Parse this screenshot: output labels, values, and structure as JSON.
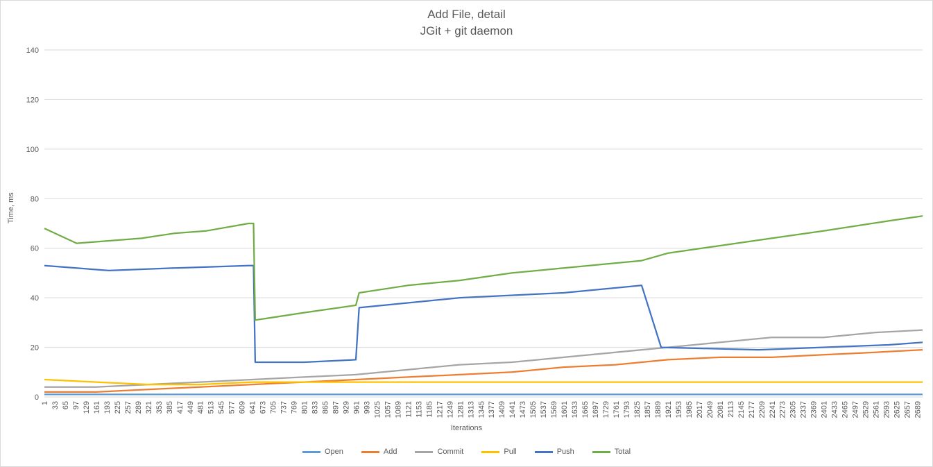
{
  "chart_data": {
    "type": "line",
    "title": "Add File, detail",
    "subtitle": "JGit + git daemon",
    "xlabel": "Iterations",
    "ylabel": "Time, ms",
    "ylim": [
      0,
      140
    ],
    "yticks": [
      0,
      20,
      40,
      60,
      80,
      100,
      120,
      140
    ],
    "xlim": [
      1,
      2705
    ],
    "xticks": [
      1,
      33,
      65,
      97,
      129,
      161,
      193,
      225,
      257,
      289,
      321,
      353,
      385,
      417,
      449,
      481,
      513,
      545,
      577,
      609,
      641,
      673,
      705,
      737,
      769,
      801,
      833,
      865,
      897,
      929,
      961,
      993,
      1025,
      1057,
      1089,
      1121,
      1153,
      1185,
      1217,
      1249,
      1281,
      1313,
      1345,
      1377,
      1409,
      1441,
      1473,
      1505,
      1537,
      1569,
      1601,
      1633,
      1665,
      1697,
      1729,
      1761,
      1793,
      1825,
      1857,
      1889,
      1921,
      1953,
      1985,
      2017,
      2049,
      2081,
      2113,
      2145,
      2177,
      2209,
      2241,
      2273,
      2305,
      2337,
      2369,
      2401,
      2433,
      2465,
      2497,
      2529,
      2561,
      2593,
      2625,
      2657,
      2689
    ],
    "grid": true,
    "legend_position": "bottom",
    "series": [
      {
        "name": "Open",
        "color": "#5b9bd5",
        "x": [
          1,
          300,
          641,
          960,
          1300,
          1700,
          2100,
          2500,
          2705
        ],
        "y": [
          1,
          1,
          1,
          1,
          1,
          1,
          1,
          1,
          1
        ]
      },
      {
        "name": "Add",
        "color": "#ed7d31",
        "x": [
          1,
          160,
          320,
          480,
          641,
          800,
          960,
          1120,
          1280,
          1440,
          1600,
          1760,
          1920,
          2080,
          2240,
          2400,
          2560,
          2705
        ],
        "y": [
          2,
          2,
          3,
          4,
          5,
          6,
          7,
          8,
          9,
          10,
          12,
          13,
          15,
          16,
          16,
          17,
          18,
          19
        ]
      },
      {
        "name": "Commit",
        "color": "#a5a5a5",
        "x": [
          1,
          160,
          320,
          480,
          641,
          800,
          960,
          1120,
          1280,
          1440,
          1600,
          1760,
          1920,
          2080,
          2240,
          2400,
          2560,
          2705
        ],
        "y": [
          4,
          4,
          5,
          6,
          7,
          8,
          9,
          11,
          13,
          14,
          16,
          18,
          20,
          22,
          24,
          24,
          26,
          27
        ]
      },
      {
        "name": "Pull",
        "color": "#ffc000",
        "x": [
          1,
          160,
          320,
          480,
          641,
          800,
          960,
          1120,
          1280,
          1440,
          1600,
          1760,
          1920,
          2080,
          2240,
          2400,
          2560,
          2705
        ],
        "y": [
          7,
          6,
          5,
          5,
          6,
          6,
          6,
          6,
          6,
          6,
          6,
          6,
          6,
          6,
          6,
          6,
          6,
          6
        ]
      },
      {
        "name": "Push",
        "color": "#4472c4",
        "x": [
          1,
          200,
          400,
          630,
          645,
          650,
          800,
          960,
          970,
          1280,
          1600,
          1840,
          1900,
          2200,
          2600,
          2705
        ],
        "y": [
          53,
          51,
          52,
          53,
          53,
          14,
          14,
          15,
          36,
          40,
          42,
          45,
          20,
          19,
          21,
          22
        ]
      },
      {
        "name": "Total",
        "color": "#70ad47",
        "x": [
          1,
          100,
          200,
          300,
          400,
          500,
          630,
          645,
          650,
          800,
          960,
          970,
          1120,
          1280,
          1440,
          1600,
          1760,
          1840,
          1920,
          2080,
          2240,
          2400,
          2600,
          2705
        ],
        "y": [
          68,
          62,
          63,
          64,
          66,
          67,
          70,
          70,
          31,
          34,
          37,
          42,
          45,
          47,
          50,
          52,
          54,
          55,
          58,
          61,
          64,
          67,
          71,
          73
        ]
      }
    ]
  }
}
